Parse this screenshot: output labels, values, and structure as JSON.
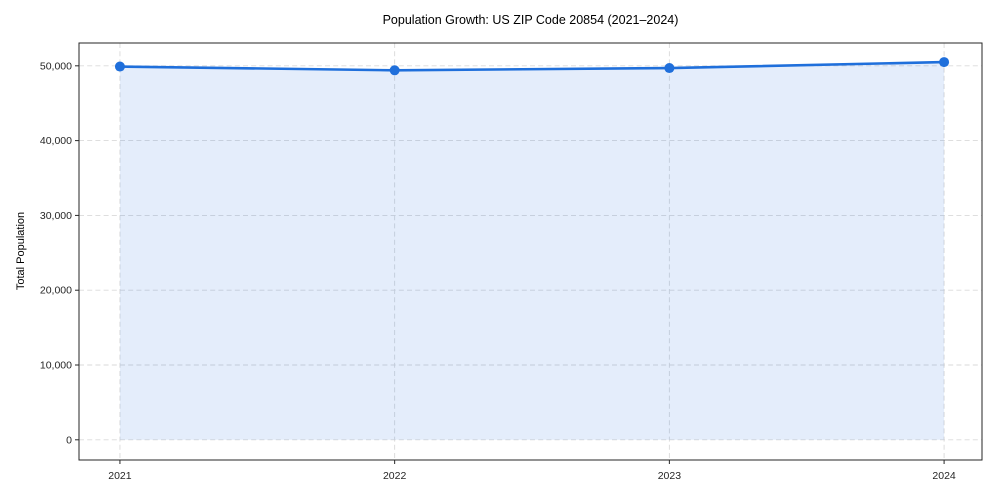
{
  "figure": {
    "background": "#ffffff"
  },
  "chart_data": {
    "type": "area",
    "title": "Population Growth: US ZIP Code 20854 (2021–2024)",
    "xlabel": "",
    "ylabel": "Total Population",
    "x": [
      2021,
      2022,
      2023,
      2024
    ],
    "xtick_labels": [
      "2021",
      "2022",
      "2023",
      "2024"
    ],
    "series": [
      {
        "name": "Total Population",
        "values": [
          49900,
          49400,
          49700,
          50500
        ]
      }
    ],
    "yticks": [
      0,
      10000,
      20000,
      30000,
      40000,
      50000
    ],
    "ytick_labels": [
      "0",
      "10,000",
      "20,000",
      "30,000",
      "40,000",
      "50,000"
    ],
    "xlim": [
      2020.851,
      2024.138
    ],
    "ylim": [
      -2700,
      53050
    ],
    "grid": true,
    "legend_position": "none",
    "line_color": "#1f6fdb",
    "marker_color": "#1f6fdb",
    "marker": "circle",
    "fill_color": "rgba(31, 111, 219, 0.12)",
    "grid_color": "#d9d9d9",
    "axis_color": "#262626"
  }
}
